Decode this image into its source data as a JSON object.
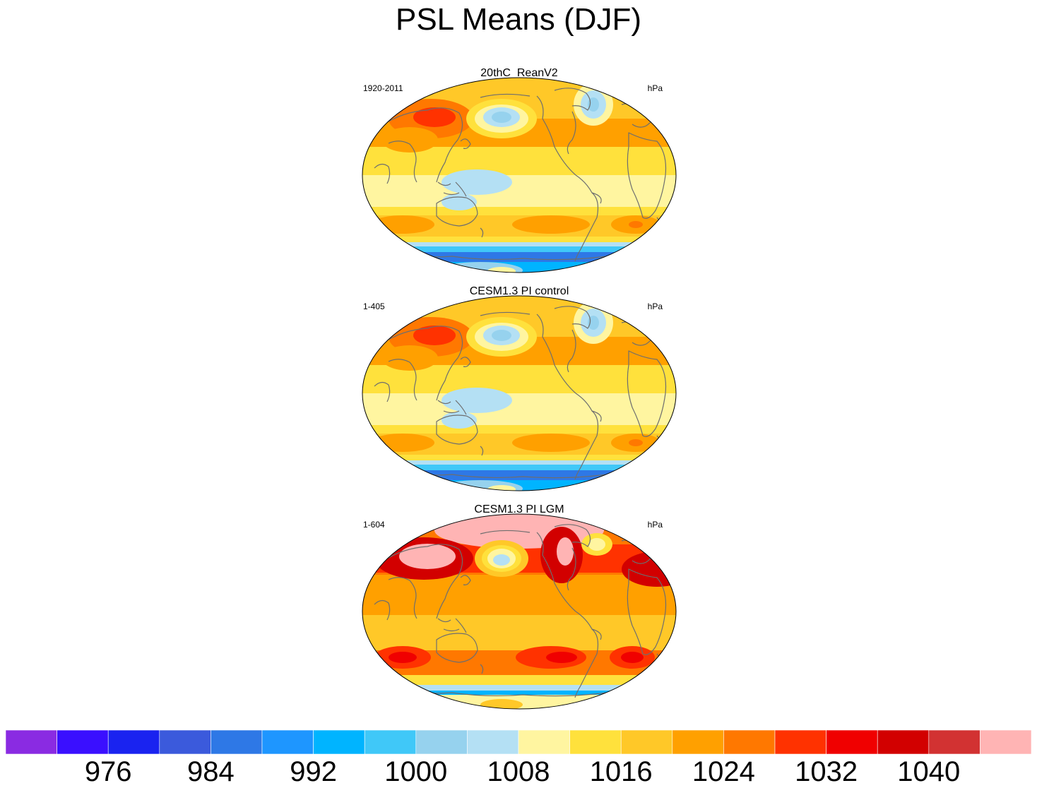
{
  "title": "PSL Means (DJF)",
  "panels": [
    {
      "name": "20thC_ReanV2",
      "period": "1920-2011",
      "units": "hPa",
      "variant": "rean"
    },
    {
      "name": "CESM1.3 PI control",
      "period": "1-405",
      "units": "hPa",
      "variant": "pi"
    },
    {
      "name": "CESM1.3 PI LGM",
      "period": "1-604",
      "units": "hPa",
      "variant": "lgm"
    }
  ],
  "colorbar": {
    "colors": [
      "#8a2be2",
      "#3a0fff",
      "#1a23f0",
      "#3b5adc",
      "#2e78e6",
      "#1e96ff",
      "#00b4ff",
      "#40c8f8",
      "#96d2ee",
      "#b4e0f4",
      "#fff5a0",
      "#ffe13c",
      "#ffc828",
      "#ffa000",
      "#ff7800",
      "#ff3200",
      "#f00000",
      "#d20000",
      "#d23232",
      "#ffb4b4"
    ],
    "labels": [
      "976",
      "984",
      "992",
      "1000",
      "1008",
      "1016",
      "1024",
      "1032",
      "1040"
    ]
  }
}
